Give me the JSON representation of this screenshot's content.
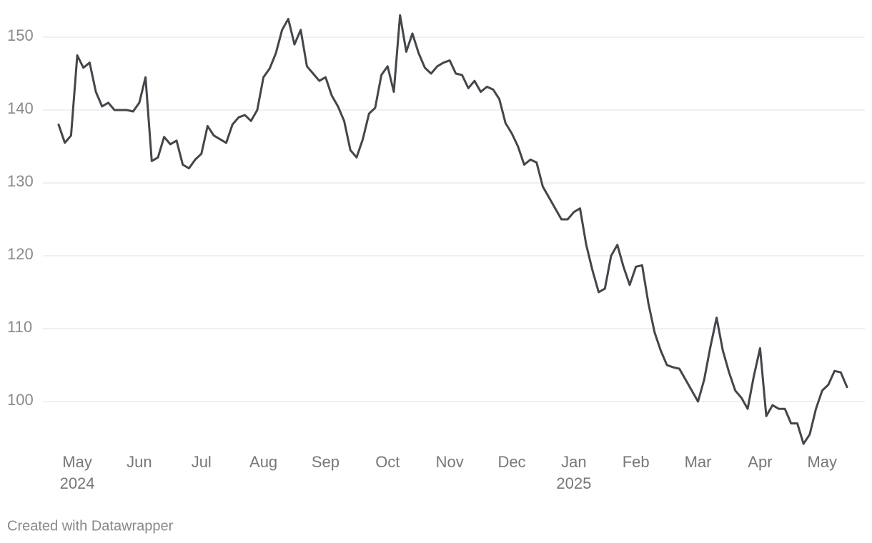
{
  "chart_data": {
    "type": "line",
    "categories": [
      null,
      null,
      null,
      "May 2024",
      null,
      null,
      null,
      null,
      null,
      null,
      null,
      null,
      null,
      "Jun",
      null,
      null,
      null,
      null,
      null,
      null,
      null,
      null,
      null,
      "Jul",
      null,
      null,
      null,
      null,
      null,
      null,
      null,
      null,
      null,
      "Aug",
      null,
      null,
      null,
      null,
      null,
      null,
      null,
      null,
      null,
      "Sep",
      null,
      null,
      null,
      null,
      null,
      null,
      null,
      null,
      null,
      "Oct",
      null,
      null,
      null,
      null,
      null,
      null,
      null,
      null,
      null,
      "Nov",
      null,
      null,
      null,
      null,
      null,
      null,
      null,
      null,
      null,
      "Dec",
      null,
      null,
      null,
      null,
      null,
      null,
      null,
      null,
      null,
      "Jan 2025",
      null,
      null,
      null,
      null,
      null,
      null,
      null,
      null,
      null,
      "Feb",
      null,
      null,
      null,
      null,
      null,
      null,
      null,
      null,
      null,
      "Mar",
      null,
      null,
      null,
      null,
      null,
      null,
      null,
      null,
      null,
      "Apr",
      null,
      null,
      null,
      null,
      null,
      null,
      null,
      null,
      null,
      "May",
      null,
      null,
      null,
      null
    ],
    "series": [
      {
        "color": "#43464b",
        "values": [
          138,
          135.5,
          136.5,
          147.5,
          145.8,
          146.5,
          142.5,
          140.5,
          141,
          140,
          140,
          140,
          139.8,
          141,
          144.5,
          133,
          133.5,
          136.3,
          135.3,
          135.8,
          132.5,
          132,
          133.2,
          134,
          137.8,
          136.5,
          136,
          135.5,
          138,
          139,
          139.3,
          138.5,
          140,
          144.5,
          145.7,
          147.8,
          151,
          152.5,
          149,
          151,
          146,
          145,
          144,
          144.5,
          142,
          140.5,
          138.5,
          134.5,
          133.5,
          136,
          139.5,
          140.3,
          144.8,
          146,
          142.5,
          153,
          148,
          150.5,
          147.8,
          145.8,
          145,
          146,
          146.5,
          146.8,
          145,
          144.8,
          143,
          144,
          142.5,
          143.2,
          142.8,
          141.5,
          138.2,
          136.8,
          135,
          132.5,
          133.2,
          132.8,
          129.5,
          128,
          126.5,
          125,
          125,
          126,
          126.5,
          121.5,
          118,
          115,
          115.5,
          120,
          121.5,
          118.5,
          116,
          118.5,
          118.7,
          113.5,
          109.5,
          107,
          105,
          104.7,
          104.5,
          103,
          101.5,
          100,
          103,
          107.5,
          111.5,
          107,
          104,
          101.5,
          100.5,
          99,
          103.5,
          107.3,
          98,
          99.5,
          99,
          99,
          97,
          97,
          94.2,
          95.5,
          99,
          101.5,
          102.3,
          104.2,
          104,
          102
        ]
      }
    ],
    "ylim": [
      93,
      154
    ],
    "yticks": [
      100,
      110,
      120,
      130,
      140,
      150
    ],
    "grid": true,
    "credit": "Created with Datawrapper"
  }
}
